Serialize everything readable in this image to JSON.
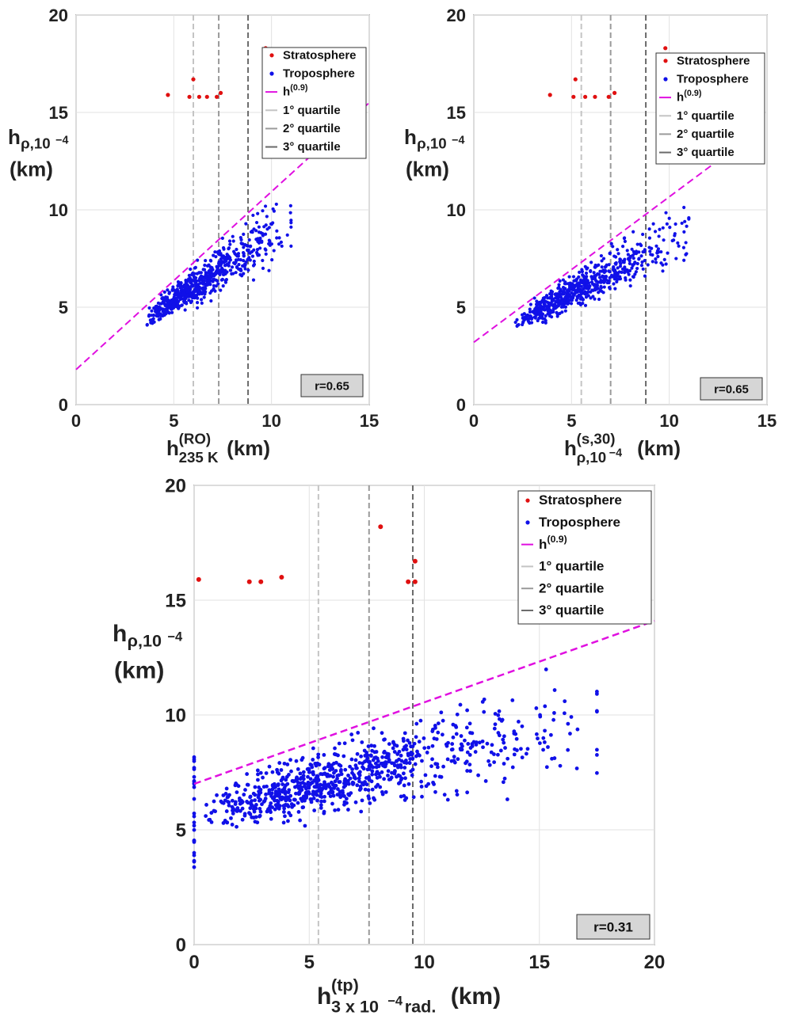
{
  "chart_data": [
    {
      "type": "scatter",
      "id": "p1",
      "xlim": [
        0,
        15
      ],
      "ylim": [
        0,
        20
      ],
      "xticks": [
        0,
        5,
        10,
        15
      ],
      "yticks": [
        0,
        5,
        10,
        15,
        20
      ],
      "xlabel": {
        "main": "h",
        "sup": "(RO)",
        "sub": "235 K",
        "unit": "(km)"
      },
      "ylabel": {
        "main": "h",
        "sub": "ρ,10",
        "subsup": "−4",
        "unit": "(km)"
      },
      "legend": [
        "Stratosphere",
        "Troposphere",
        "h",
        "(0.9)",
        "1° quartile",
        "2° quartile",
        "3° quartile"
      ],
      "quartiles": [
        6.0,
        7.3,
        8.8
      ],
      "fit_line": [
        [
          0,
          1.8
        ],
        [
          15,
          15.5
        ]
      ],
      "stratosphere": [
        [
          4.7,
          15.9
        ],
        [
          5.8,
          15.8
        ],
        [
          6.0,
          16.7
        ],
        [
          6.3,
          15.8
        ],
        [
          6.7,
          15.8
        ],
        [
          7.2,
          15.8
        ],
        [
          7.4,
          16.0
        ],
        [
          9.7,
          18.3
        ]
      ],
      "correlation": "r=0.65",
      "cloud": {
        "xmin": 3.5,
        "xmax": 11.0,
        "n": 650,
        "seed": 11,
        "cap": 1.8,
        "capSlope": 0.91
      }
    },
    {
      "type": "scatter",
      "id": "p2",
      "xlim": [
        0,
        15
      ],
      "ylim": [
        0,
        20
      ],
      "xticks": [
        0,
        5,
        10,
        15
      ],
      "yticks": [
        0,
        5,
        10,
        15,
        20
      ],
      "xlabel": {
        "main": "h",
        "sup": "(s,30)",
        "sub": "ρ,10",
        "subsup": "−4",
        "unit": "(km)"
      },
      "ylabel": {
        "main": "h",
        "sub": "ρ,10",
        "subsup": "−4",
        "unit": "(km)"
      },
      "legend": [
        "Stratosphere",
        "Troposphere",
        "h",
        "(0.9)",
        "1° quartile",
        "2° quartile",
        "3° quartile"
      ],
      "quartiles": [
        5.5,
        7.0,
        8.8
      ],
      "fit_line": [
        [
          0,
          3.2
        ],
        [
          15,
          14.4
        ]
      ],
      "stratosphere": [
        [
          3.9,
          15.9
        ],
        [
          5.1,
          15.8
        ],
        [
          5.2,
          16.7
        ],
        [
          5.7,
          15.8
        ],
        [
          6.2,
          15.8
        ],
        [
          6.9,
          15.8
        ],
        [
          7.2,
          16.0
        ],
        [
          9.8,
          18.3
        ]
      ],
      "correlation": "r=0.65",
      "cloud": {
        "xmin": 2.0,
        "xmax": 11.0,
        "n": 650,
        "seed": 23,
        "cap": 3.2,
        "capSlope": 0.75
      }
    },
    {
      "type": "scatter",
      "id": "p3",
      "xlim": [
        0,
        20
      ],
      "ylim": [
        0,
        20
      ],
      "xticks": [
        0,
        5,
        10,
        15,
        20
      ],
      "yticks": [
        0,
        5,
        10,
        15,
        20
      ],
      "xlabel": {
        "main": "h",
        "sup": "(tp)",
        "sub": "3 x 10",
        "subsup": "−4",
        "subtail": "rad.",
        "unit": "(km)"
      },
      "ylabel": {
        "main": "h",
        "sub": "ρ,10",
        "subsup": "−4",
        "unit": "(km)"
      },
      "legend": [
        "Stratosphere",
        "Troposphere",
        "h",
        "(0.9)",
        "1° quartile",
        "2° quartile",
        "3° quartile"
      ],
      "quartiles": [
        5.4,
        7.6,
        9.5
      ],
      "fit_line": [
        [
          0,
          7.0
        ],
        [
          20,
          14.1
        ]
      ],
      "stratosphere": [
        [
          0.2,
          15.9
        ],
        [
          2.4,
          15.8
        ],
        [
          2.9,
          15.8
        ],
        [
          3.8,
          16.0
        ],
        [
          8.1,
          18.2
        ],
        [
          9.3,
          15.8
        ],
        [
          9.6,
          16.7
        ],
        [
          9.6,
          15.8
        ]
      ],
      "correlation": "r=0.31",
      "cloud": {
        "xmin": 0.0,
        "xmax": 17.5,
        "n": 850,
        "seed": 37,
        "cap": 7.0,
        "capSlope": 0.355
      }
    }
  ]
}
